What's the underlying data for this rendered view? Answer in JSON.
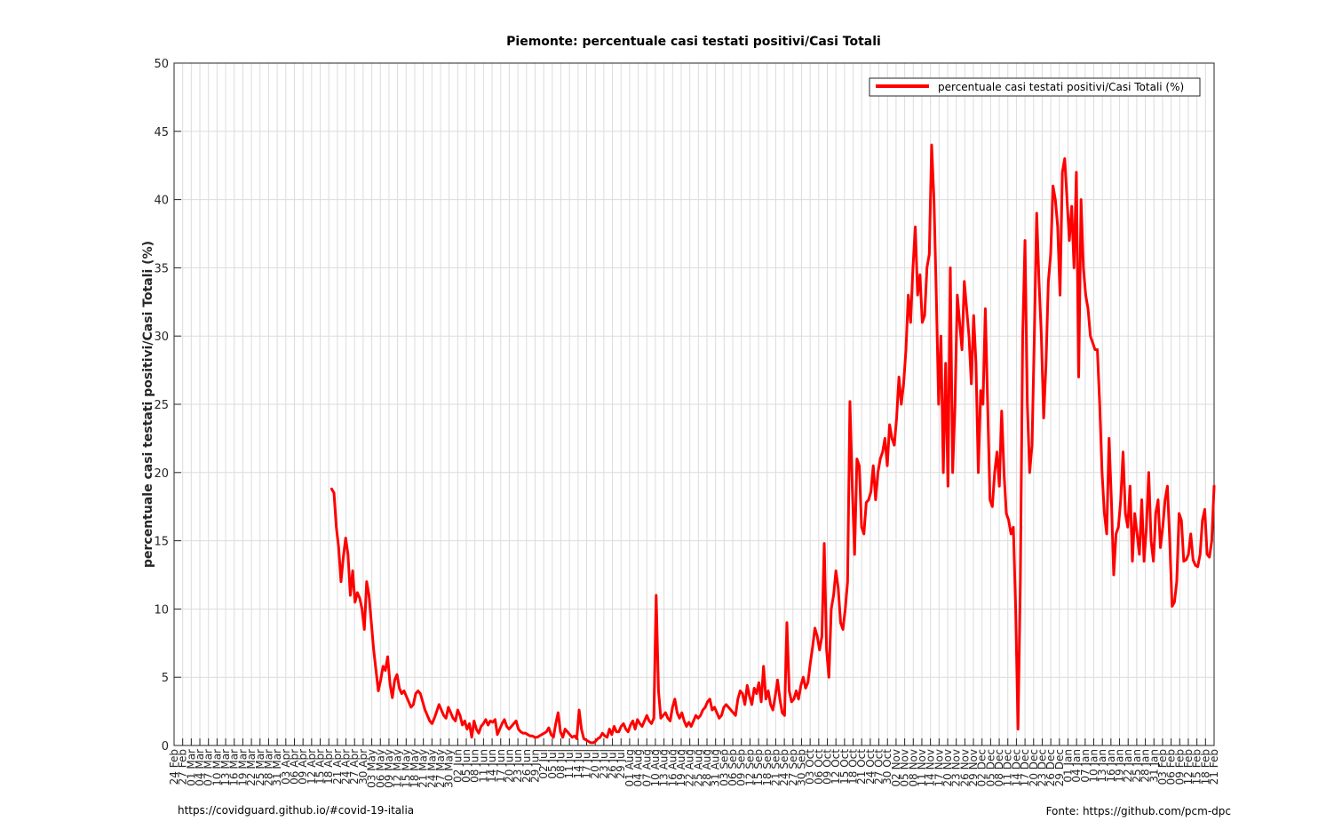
{
  "chart_data": {
    "type": "line",
    "title": "Piemonte: percentuale casi testati positivi/Casi Totali",
    "ylabel": "percentuale casi testati positivi/Casi Totali (%)",
    "xlabel": "",
    "ylim": [
      0,
      50
    ],
    "yticks": [
      0,
      5,
      10,
      15,
      20,
      25,
      30,
      35,
      40,
      45,
      50
    ],
    "xlim": [
      "2020-02-24",
      "2021-02-21"
    ],
    "x_tick_labels": [
      "24 Feb",
      "27 Feb",
      "01 Mar",
      "04 Mar",
      "07 Mar",
      "10 Mar",
      "13 Mar",
      "16 Mar",
      "19 Mar",
      "22 Mar",
      "25 Mar",
      "28 Mar",
      "31 Mar",
      "03 Apr",
      "06 Apr",
      "09 Apr",
      "12 Apr",
      "15 Apr",
      "18 Apr",
      "21 Apr",
      "24 Apr",
      "27 Apr",
      "30 Apr",
      "03 May",
      "06 May",
      "09 May",
      "12 May",
      "15 May",
      "18 May",
      "21 May",
      "24 May",
      "27 May",
      "30 May",
      "02 Jun",
      "05 Jun",
      "08 Jun",
      "11 Jun",
      "14 Jun",
      "17 Jun",
      "20 Jun",
      "23 Jun",
      "26 Jun",
      "29 Jun",
      "02 Jul",
      "05 Jul",
      "08 Jul",
      "11 Jul",
      "14 Jul",
      "17 Jul",
      "20 Jul",
      "23 Jul",
      "26 Jul",
      "29 Jul",
      "01 Aug",
      "04 Aug",
      "07 Aug",
      "10 Aug",
      "13 Aug",
      "16 Aug",
      "19 Aug",
      "22 Aug",
      "25 Aug",
      "28 Aug",
      "31 Aug",
      "03 Sep",
      "06 Sep",
      "09 Sep",
      "12 Sep",
      "15 Sep",
      "18 Sep",
      "21 Sep",
      "24 Sep",
      "27 Sep",
      "30 Sep",
      "03 Oct",
      "06 Oct",
      "09 Oct",
      "12 Oct",
      "15 Oct",
      "18 Oct",
      "21 Oct",
      "24 Oct",
      "27 Oct",
      "30 Oct",
      "02 Nov",
      "05 Nov",
      "08 Nov",
      "11 Nov",
      "14 Nov",
      "17 Nov",
      "20 Nov",
      "23 Nov",
      "26 Nov",
      "29 Nov",
      "02 Dec",
      "05 Dec",
      "08 Dec",
      "11 Dec",
      "14 Dec",
      "17 Dec",
      "20 Dec",
      "23 Dec",
      "26 Dec",
      "29 Dec",
      "01 Jan",
      "04 Jan",
      "07 Jan",
      "10 Jan",
      "13 Jan",
      "16 Jan",
      "19 Jan",
      "22 Jan",
      "25 Jan",
      "28 Jan",
      "31 Jan",
      "03 Feb",
      "06 Feb",
      "09 Feb",
      "12 Feb",
      "15 Feb",
      "18 Feb",
      "21 Feb"
    ],
    "grid": true,
    "legend_position": "top-right",
    "series": [
      {
        "name": "percentuale casi testati positivi/Casi Totali (%)",
        "color": "#ff0000",
        "start_date": "2020-04-19",
        "values": [
          18.8,
          18.5,
          16.0,
          14.5,
          12.0,
          13.8,
          15.2,
          14.0,
          11.0,
          12.8,
          10.5,
          11.2,
          10.8,
          10.0,
          8.5,
          12.0,
          11.0,
          9.0,
          7.0,
          5.5,
          4.0,
          4.8,
          5.8,
          5.5,
          6.5,
          4.5,
          3.5,
          4.8,
          5.2,
          4.2,
          3.8,
          4.0,
          3.6,
          3.2,
          2.8,
          3.0,
          3.8,
          4.0,
          3.8,
          3.2,
          2.6,
          2.2,
          1.8,
          1.6,
          2.0,
          2.5,
          3.0,
          2.6,
          2.2,
          2.0,
          2.8,
          2.4,
          2.0,
          1.8,
          2.6,
          2.2,
          1.5,
          1.8,
          1.2,
          1.6,
          0.6,
          1.8,
          1.2,
          0.9,
          1.4,
          1.6,
          1.9,
          1.5,
          1.8,
          1.7,
          1.9,
          0.8,
          1.2,
          1.6,
          1.9,
          1.4,
          1.2,
          1.4,
          1.6,
          1.8,
          1.2,
          1.0,
          0.9,
          0.9,
          0.8,
          0.7,
          0.7,
          0.6,
          0.6,
          0.7,
          0.8,
          0.9,
          1.0,
          1.3,
          0.8,
          0.6,
          1.6,
          2.4,
          1.0,
          0.6,
          1.2,
          1.0,
          0.8,
          0.6,
          0.7,
          0.5,
          2.6,
          1.2,
          0.5,
          0.4,
          0.3,
          0.2,
          0.2,
          0.3,
          0.5,
          0.6,
          0.9,
          0.7,
          0.6,
          1.2,
          0.8,
          1.4,
          1.0,
          1.0,
          1.4,
          1.6,
          1.2,
          1.0,
          1.5,
          1.8,
          1.2,
          1.9,
          1.6,
          1.4,
          1.8,
          2.2,
          1.8,
          1.6,
          2.0,
          11.0,
          4.0,
          2.0,
          2.2,
          2.4,
          2.0,
          1.8,
          2.8,
          3.4,
          2.4,
          2.0,
          2.4,
          1.8,
          1.4,
          1.7,
          1.4,
          1.8,
          2.2,
          2.0,
          2.2,
          2.6,
          2.8,
          3.2,
          3.4,
          2.6,
          2.8,
          2.4,
          2.0,
          2.2,
          2.8,
          3.0,
          2.8,
          2.6,
          2.4,
          2.2,
          3.4,
          4.0,
          3.8,
          3.0,
          4.4,
          3.6,
          3.0,
          4.2,
          3.8,
          4.6,
          3.2,
          5.8,
          3.4,
          4.0,
          3.0,
          2.6,
          3.6,
          4.8,
          3.4,
          2.4,
          2.2,
          9.0,
          4.0,
          3.2,
          3.4,
          4.0,
          3.4,
          4.4,
          5.0,
          4.2,
          4.6,
          6.0,
          7.2,
          8.6,
          8.0,
          7.0,
          8.0,
          14.8,
          7.0,
          5.0,
          10.0,
          11.0,
          12.8,
          11.5,
          9.0,
          8.5,
          10.0,
          12.0,
          25.2,
          19.0,
          14.0,
          21.0,
          20.5,
          16.0,
          15.5,
          17.8,
          18.0,
          18.6,
          20.5,
          18.0,
          20.0,
          21.0,
          21.5,
          22.5,
          20.5,
          23.5,
          22.5,
          22.0,
          24.0,
          27.0,
          25.0,
          26.5,
          29.0,
          33.0,
          31.0,
          35.0,
          38.0,
          33.0,
          34.5,
          31.0,
          31.5,
          35.0,
          36.0,
          44.0,
          40.0,
          33.0,
          25.0,
          30.0,
          20.0,
          28.0,
          19.0,
          35.0,
          20.0,
          25.0,
          33.0,
          31.0,
          29.0,
          34.0,
          32.0,
          30.0,
          26.5,
          31.5,
          28.0,
          20.0,
          26.0,
          25.0,
          32.0,
          25.0,
          18.0,
          17.5,
          20.0,
          21.5,
          19.0,
          24.5,
          20.0,
          17.0,
          16.5,
          15.5,
          16.0,
          10.0,
          1.2,
          12.0,
          30.0,
          37.0,
          25.0,
          20.0,
          22.0,
          30.0,
          39.0,
          34.0,
          30.0,
          24.0,
          28.0,
          34.0,
          36.0,
          41.0,
          40.0,
          38.0,
          33.0,
          42.0,
          43.0,
          40.0,
          37.0,
          39.5,
          35.0,
          42.0,
          27.0,
          40.0,
          35.0,
          33.0,
          32.0,
          30.0,
          29.5,
          29.0,
          29.0,
          25.0,
          20.0,
          17.0,
          15.5,
          22.5,
          18.0,
          12.5,
          15.5,
          16.0,
          18.0,
          21.5,
          17.0,
          16.0,
          19.0,
          13.5,
          17.0,
          15.5,
          14.0,
          18.0,
          13.5,
          16.0,
          20.0,
          15.0,
          13.5,
          17.0,
          18.0,
          14.5,
          16.0,
          18.0,
          19.0,
          15.0,
          10.2,
          10.5,
          12.0,
          17.0,
          16.5,
          13.5,
          13.6,
          14.0,
          15.5,
          13.6,
          13.2,
          13.1,
          14.0,
          16.5,
          17.3,
          14.0,
          13.8,
          15.0,
          19.0
        ]
      }
    ]
  },
  "footer": {
    "left": "https://covidguard.github.io/#covid-19-italia",
    "right": "Fonte: https://github.com/pcm-dpc"
  }
}
